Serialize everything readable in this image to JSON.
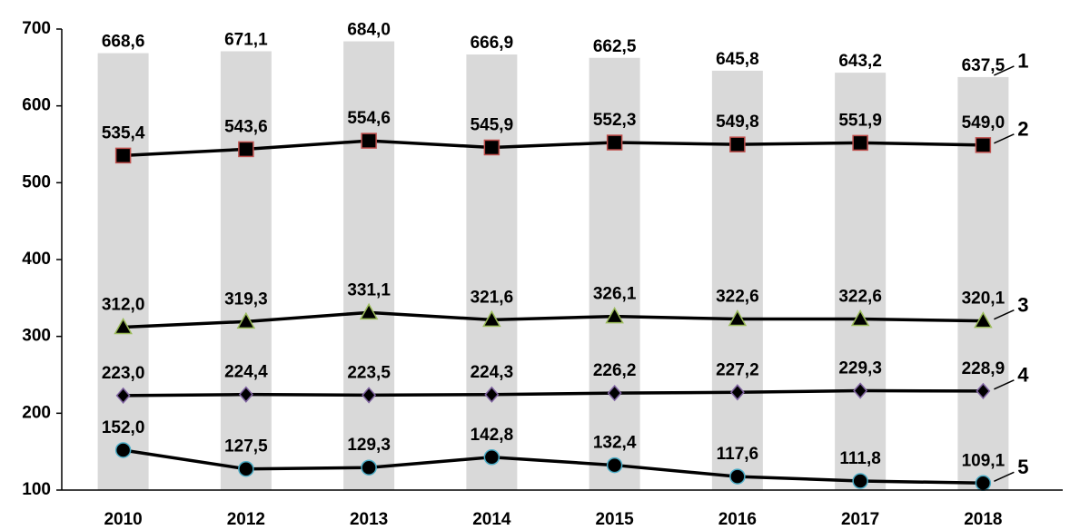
{
  "chart_data": {
    "type": "combo",
    "categories": [
      "2010",
      "2012",
      "2013",
      "2014",
      "2015",
      "2016",
      "2017",
      "2018"
    ],
    "ylim": [
      100,
      700
    ],
    "yticks": [
      100,
      200,
      300,
      400,
      500,
      600,
      700
    ],
    "grid": false,
    "series": [
      {
        "name": "1",
        "type": "bar",
        "color": "#d9d9d9",
        "values": [
          668.6,
          671.1,
          684.0,
          666.9,
          662.5,
          645.8,
          643.2,
          637.5
        ],
        "value_labels": [
          "668,6",
          "671,1",
          "684,0",
          "666,9",
          "662,5",
          "645,8",
          "643,2",
          "637,5"
        ]
      },
      {
        "name": "2",
        "type": "line",
        "marker": "square",
        "color": "#c0504d",
        "line_color": "#000000",
        "values": [
          535.4,
          543.6,
          554.6,
          545.9,
          552.3,
          549.8,
          551.9,
          549.0
        ],
        "value_labels": [
          "535,4",
          "543,6",
          "554,6",
          "545,9",
          "552,3",
          "549,8",
          "551,9",
          "549,0"
        ]
      },
      {
        "name": "3",
        "type": "line",
        "marker": "triangle",
        "color": "#9bbb59",
        "line_color": "#000000",
        "values": [
          312.0,
          319.3,
          331.1,
          321.6,
          326.1,
          322.6,
          322.6,
          320.1
        ],
        "value_labels": [
          "312,0",
          "319,3",
          "331,1",
          "321,6",
          "326,1",
          "322,6",
          "322,6",
          "320,1"
        ]
      },
      {
        "name": "4",
        "type": "line",
        "marker": "diamond",
        "color": "#8064a2",
        "line_color": "#000000",
        "values": [
          223.0,
          224.4,
          223.5,
          224.3,
          226.2,
          227.2,
          229.3,
          228.9
        ],
        "value_labels": [
          "223,0",
          "224,4",
          "223,5",
          "224,3",
          "226,2",
          "227,2",
          "229,3",
          "228,9"
        ]
      },
      {
        "name": "5",
        "type": "line",
        "marker": "circle",
        "color": "#4bacc6",
        "line_color": "#000000",
        "values": [
          152.0,
          127.5,
          129.3,
          142.8,
          132.4,
          117.6,
          111.8,
          109.1
        ],
        "value_labels": [
          "152,0",
          "127,5",
          "129,3",
          "142,8",
          "132,4",
          "117,6",
          "111,8",
          "109,1"
        ]
      }
    ]
  }
}
